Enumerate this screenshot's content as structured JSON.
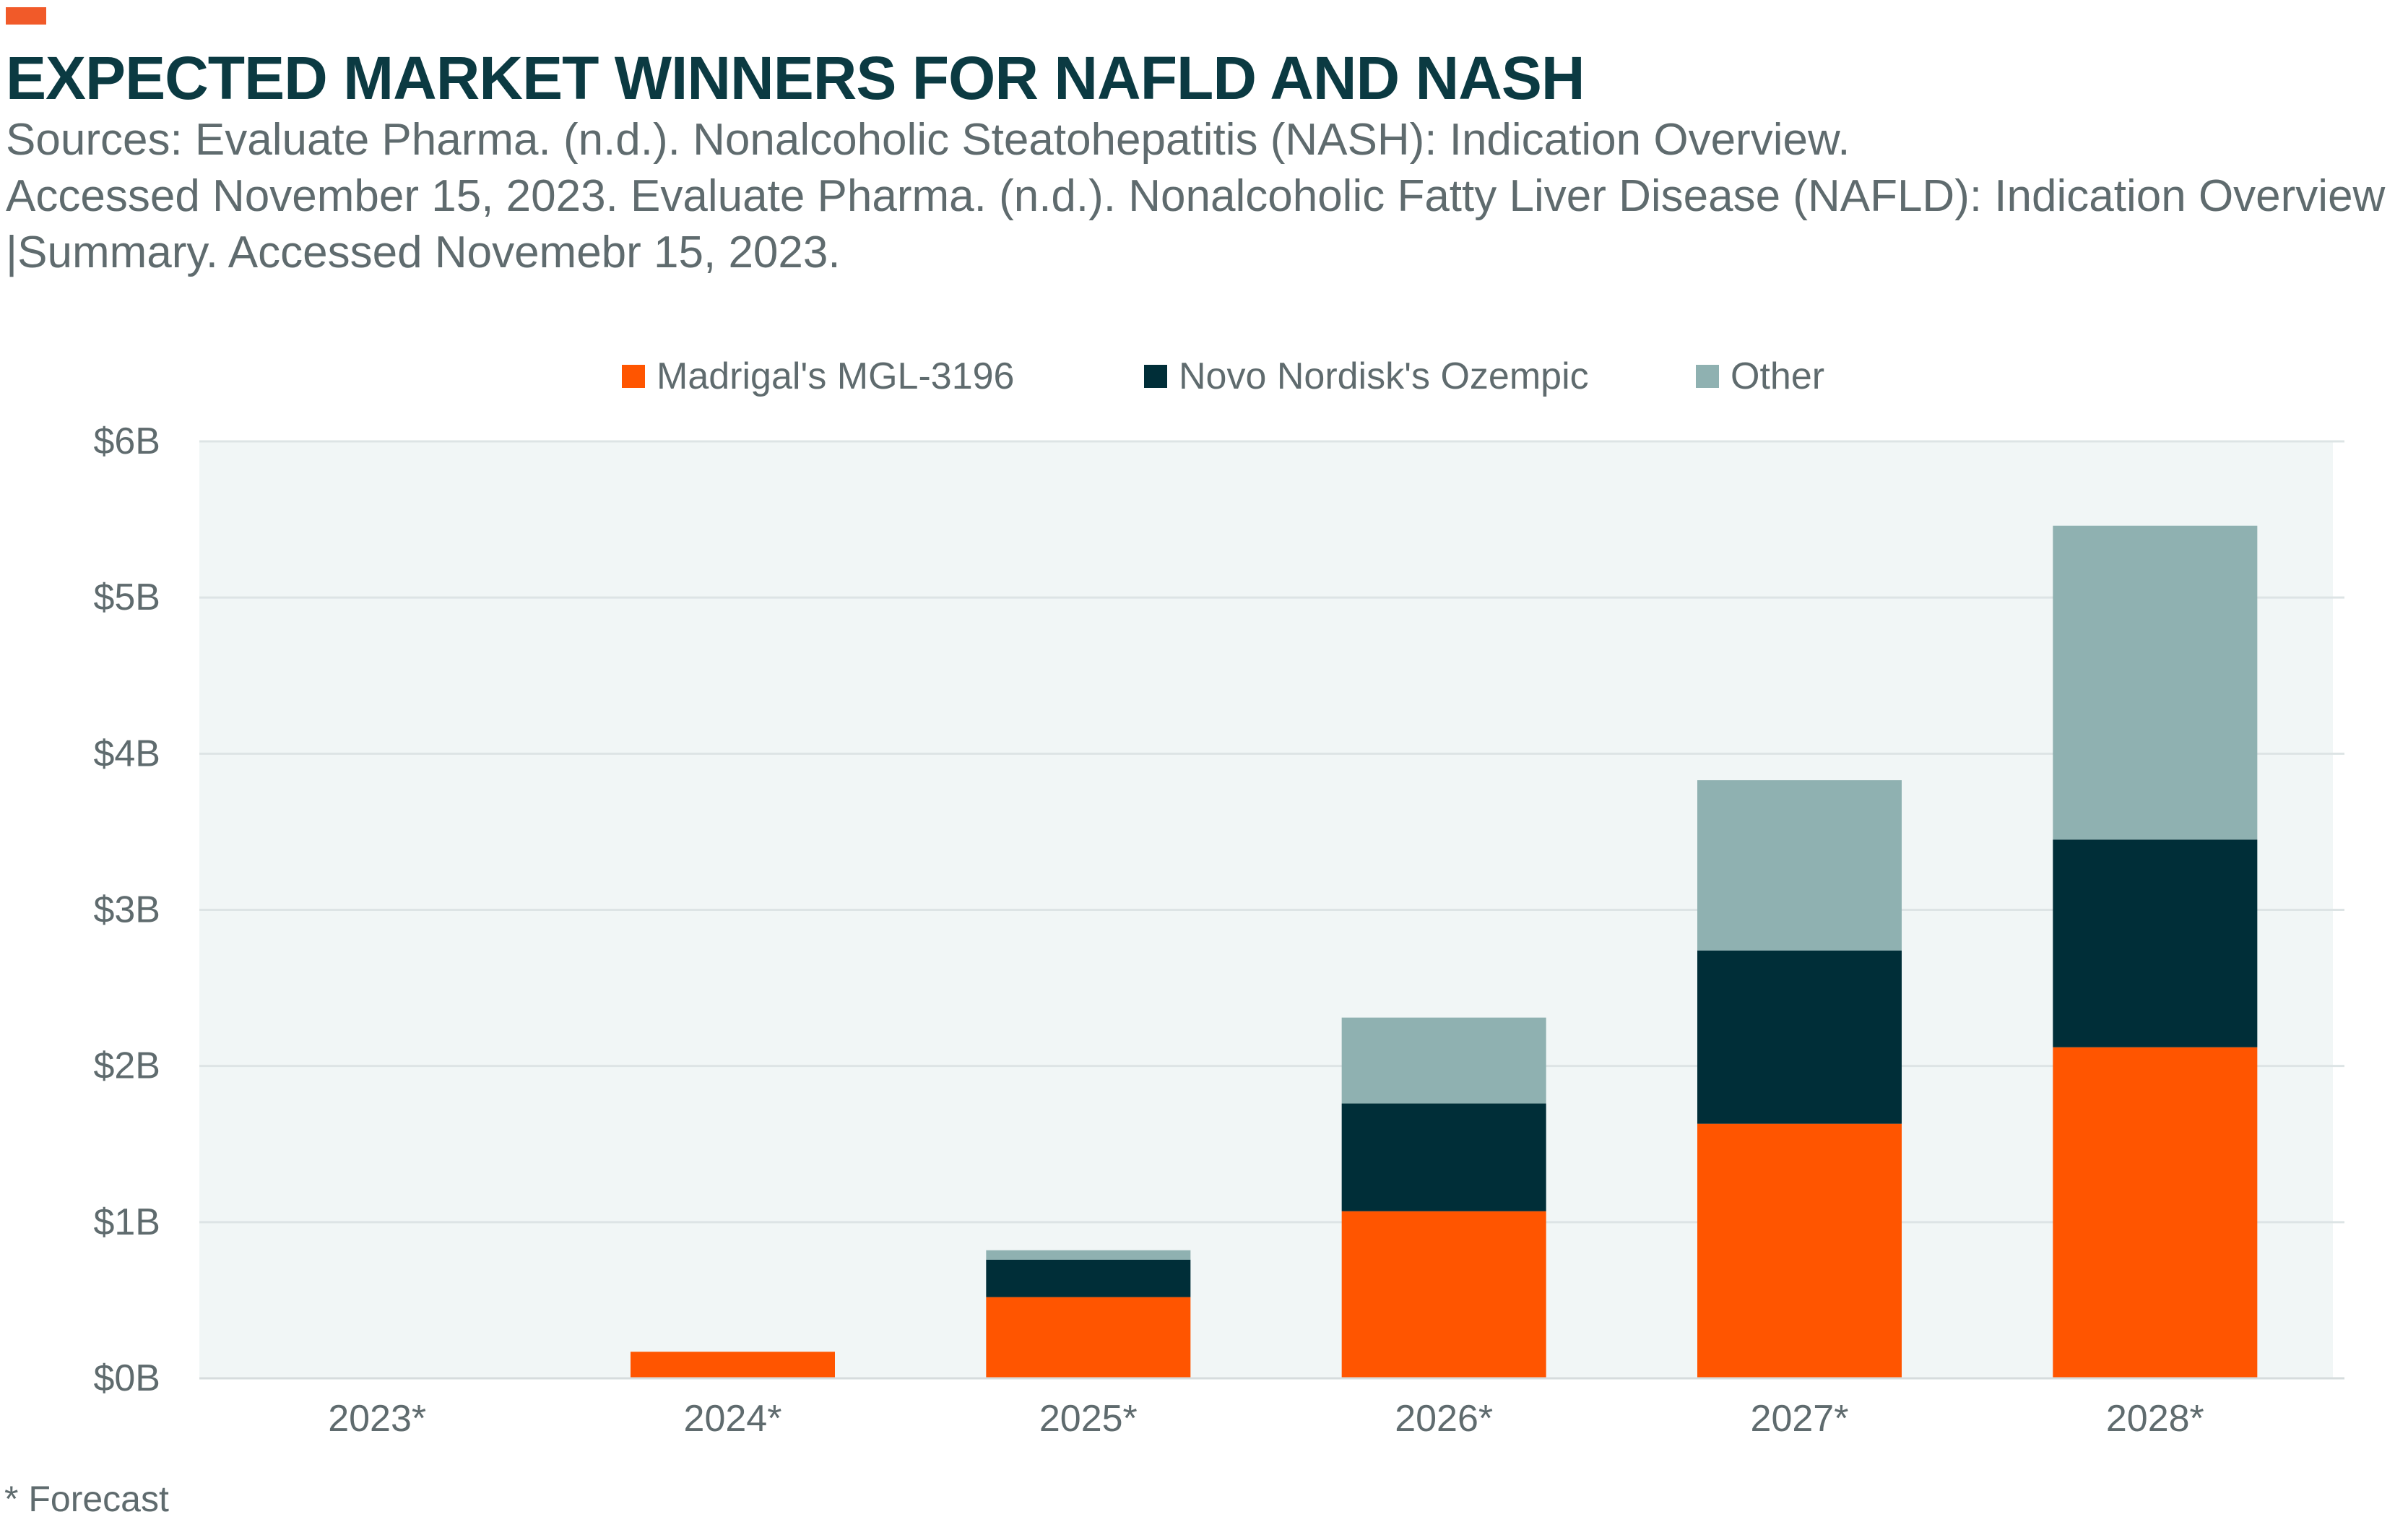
{
  "header": {
    "title": "EXPECTED MARKET WINNERS FOR NAFLD AND NASH",
    "subtitle_lines": [
      "Sources: Evaluate Pharma. (n.d.). Nonalcoholic Steatohepatitis (NASH): Indication Overview.",
      "Accessed November 15, 2023. Evaluate Pharma. (n.d.). Nonalcoholic Fatty Liver Disease (NAFLD): Indication Overview",
      "|Summary. Accessed Novemebr 15, 2023."
    ]
  },
  "footnote": "* Forecast",
  "colors": {
    "accent": "#f15a29",
    "plot_background": "#f1f6f6",
    "grid": "#dde4e5"
  },
  "chart_data": {
    "type": "bar",
    "stacked": true,
    "categories": [
      "2023*",
      "2024*",
      "2025*",
      "2026*",
      "2027*",
      "2028*"
    ],
    "series": [
      {
        "name": "Madrigal's MGL-3196",
        "color": "#ff5500",
        "values": [
          0,
          0.17,
          0.52,
          1.07,
          1.63,
          2.12
        ]
      },
      {
        "name": "Novo Nordisk's Ozempic",
        "color": "#002e38",
        "values": [
          0,
          0,
          0.24,
          0.69,
          1.11,
          1.33
        ]
      },
      {
        "name": "Other",
        "color": "#8fb1b1",
        "values": [
          0,
          0,
          0.06,
          0.55,
          1.09,
          2.01
        ]
      }
    ],
    "y_ticks": [
      "$0B",
      "$1B",
      "$2B",
      "$3B",
      "$4B",
      "$5B",
      "$6B"
    ],
    "ylim": [
      0,
      6
    ],
    "grid": true,
    "legend": "top-center",
    "xlabel": "",
    "ylabel": ""
  }
}
